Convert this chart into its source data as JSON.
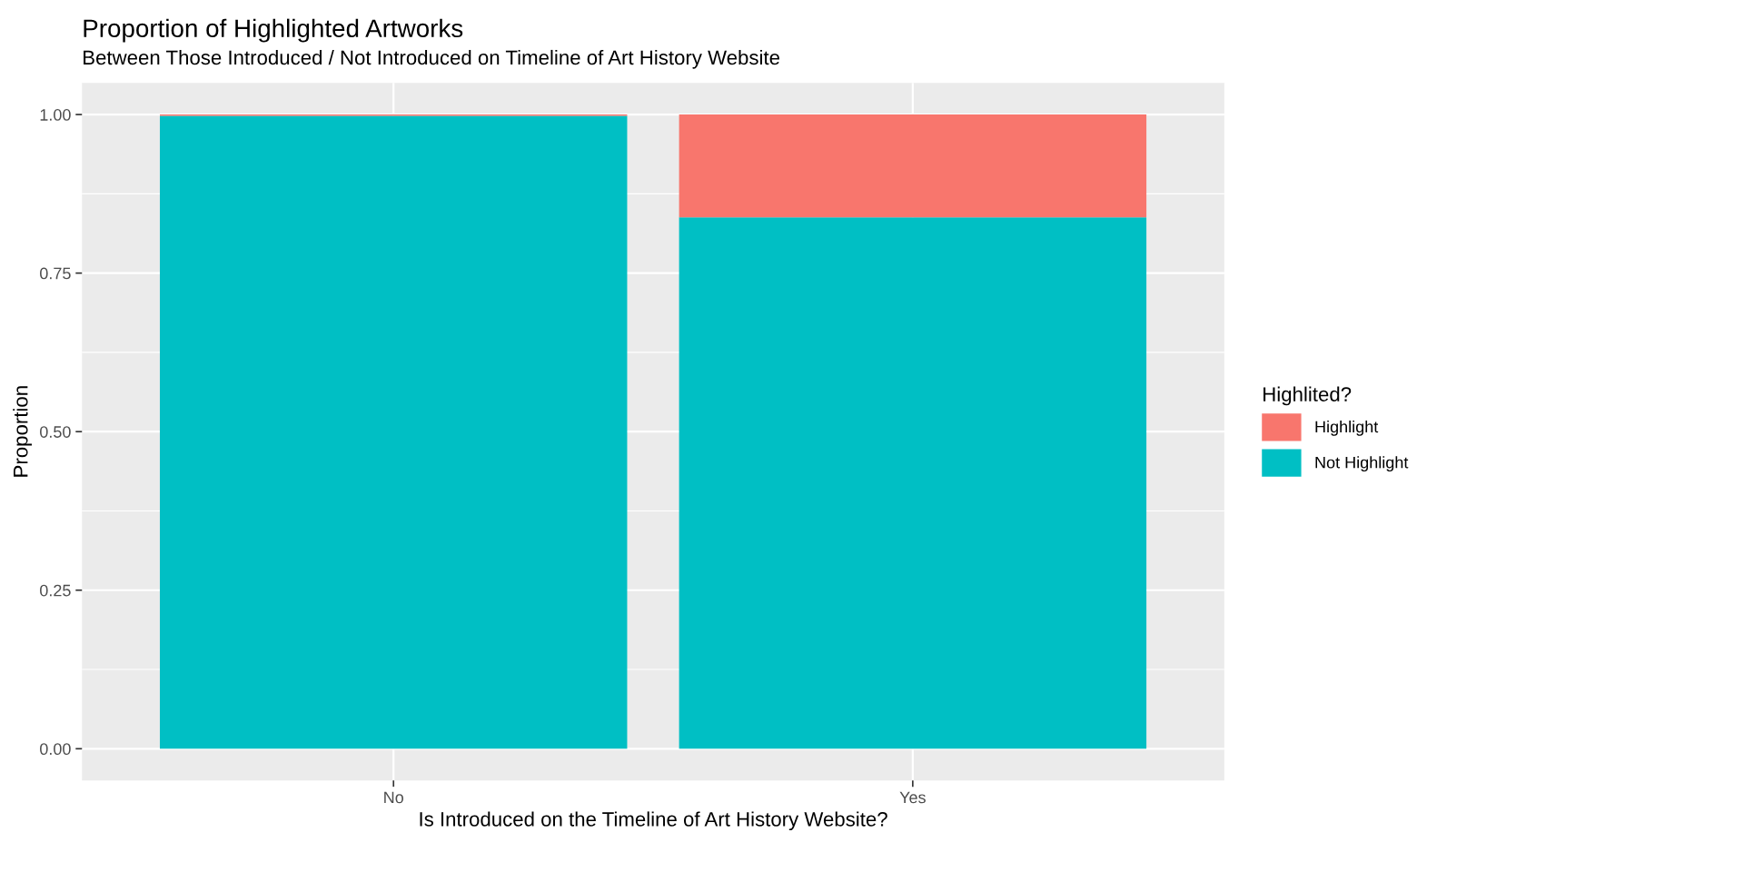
{
  "chart_data": {
    "type": "bar",
    "title": "Proportion of Highlighted Artworks",
    "subtitle": "Between Those Introduced / Not Introduced on Timeline of Art History Website",
    "xlabel": "Is Introduced on the Timeline of Art History Website?",
    "ylabel": "Proportion",
    "legend_title": "Highlited?",
    "categories": [
      "No",
      "Yes"
    ],
    "stacked": true,
    "series": [
      {
        "name": "Not Highlight",
        "color": "#00bfc4",
        "values": [
          0.998,
          0.838
        ]
      },
      {
        "name": "Highlight",
        "color": "#f8766d",
        "values": [
          0.002,
          0.162
        ]
      }
    ],
    "ylim": [
      -0.05,
      1.05
    ],
    "yticks": [
      {
        "value": 0,
        "label": "0.00"
      },
      {
        "value": 0.25,
        "label": "0.25"
      },
      {
        "value": 0.5,
        "label": "0.50"
      },
      {
        "value": 0.75,
        "label": "0.75"
      },
      {
        "value": 1,
        "label": "1.00"
      }
    ],
    "grid": true,
    "legend": "right"
  }
}
